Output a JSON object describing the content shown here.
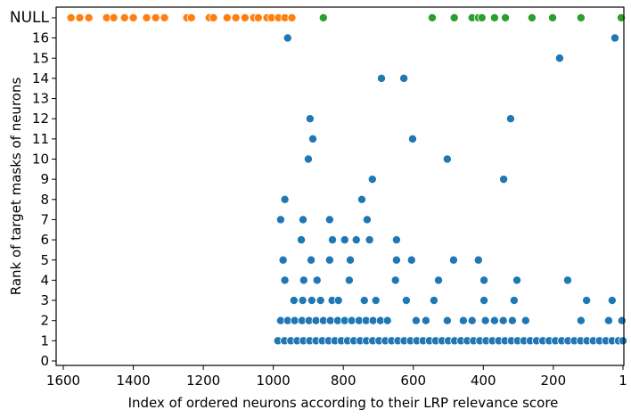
{
  "chart_data": {
    "type": "scatter",
    "xlabel": "Index of ordered neurons according to their LRP relevance score",
    "ylabel": "Rank of target masks of neurons",
    "xlim": [
      1600,
      1
    ],
    "x_reversed": true,
    "ylim": [
      0,
      17
    ],
    "x_ticks": [
      1600,
      1400,
      1200,
      1000,
      800,
      600,
      400,
      200,
      1
    ],
    "y_ticks": [
      "0",
      "1",
      "2",
      "3",
      "4",
      "5",
      "6",
      "7",
      "8",
      "9",
      "10",
      "11",
      "12",
      "13",
      "14",
      "15",
      "16",
      "NULL"
    ],
    "grid": false,
    "colors": {
      "ranked": "#1f77b4",
      "null_low": "#ff7f0e",
      "null_high": "#2ca02c"
    },
    "series": [
      {
        "color": "#1f77b4",
        "points": [
          [
            959,
            16
          ],
          [
            24,
            16
          ],
          [
            182,
            15
          ],
          [
            691,
            14
          ],
          [
            627,
            14
          ],
          [
            895,
            12
          ],
          [
            322,
            12
          ],
          [
            887,
            11
          ],
          [
            602,
            11
          ],
          [
            900,
            10
          ],
          [
            503,
            10
          ],
          [
            717,
            9
          ],
          [
            342,
            9
          ],
          [
            967,
            8
          ],
          [
            747,
            8
          ],
          [
            979,
            7
          ],
          [
            915,
            7
          ],
          [
            839,
            7
          ],
          [
            732,
            7
          ],
          [
            920,
            6
          ],
          [
            831,
            6
          ],
          [
            796,
            6
          ],
          [
            763,
            6
          ],
          [
            725,
            6
          ],
          [
            648,
            6
          ],
          [
            972,
            5
          ],
          [
            892,
            5
          ],
          [
            839,
            5
          ],
          [
            780,
            5
          ],
          [
            648,
            5
          ],
          [
            605,
            5
          ],
          [
            485,
            5
          ],
          [
            414,
            5
          ],
          [
            967,
            4
          ],
          [
            913,
            4
          ],
          [
            875,
            4
          ],
          [
            783,
            4
          ],
          [
            651,
            4
          ],
          [
            528,
            4
          ],
          [
            398,
            4
          ],
          [
            304,
            4
          ],
          [
            159,
            4
          ],
          [
            941,
            3
          ],
          [
            916,
            3
          ],
          [
            890,
            3
          ],
          [
            865,
            3
          ],
          [
            832,
            3
          ],
          [
            814,
            3
          ],
          [
            740,
            3
          ],
          [
            707,
            3
          ],
          [
            620,
            3
          ],
          [
            541,
            3
          ],
          [
            398,
            3
          ],
          [
            312,
            3
          ],
          [
            105,
            3
          ],
          [
            32,
            3
          ],
          [
            979,
            2
          ],
          [
            959,
            2
          ],
          [
            939,
            2
          ],
          [
            918,
            2
          ],
          [
            898,
            2
          ],
          [
            878,
            2
          ],
          [
            857,
            2
          ],
          [
            837,
            2
          ],
          [
            816,
            2
          ],
          [
            796,
            2
          ],
          [
            776,
            2
          ],
          [
            755,
            2
          ],
          [
            735,
            2
          ],
          [
            715,
            2
          ],
          [
            694,
            2
          ],
          [
            674,
            2
          ],
          [
            592,
            2
          ],
          [
            564,
            2
          ],
          [
            503,
            2
          ],
          [
            457,
            2
          ],
          [
            432,
            2
          ],
          [
            394,
            2
          ],
          [
            368,
            2
          ],
          [
            343,
            2
          ],
          [
            317,
            2
          ],
          [
            279,
            2
          ],
          [
            121,
            2
          ],
          [
            42,
            2
          ],
          [
            4,
            2
          ],
          [
            987,
            1
          ],
          [
            968,
            1
          ],
          [
            950,
            1
          ],
          [
            932,
            1
          ],
          [
            914,
            1
          ],
          [
            896,
            1
          ],
          [
            878,
            1
          ],
          [
            860,
            1
          ],
          [
            842,
            1
          ],
          [
            824,
            1
          ],
          [
            806,
            1
          ],
          [
            788,
            1
          ],
          [
            770,
            1
          ],
          [
            752,
            1
          ],
          [
            734,
            1
          ],
          [
            716,
            1
          ],
          [
            698,
            1
          ],
          [
            680,
            1
          ],
          [
            662,
            1
          ],
          [
            644,
            1
          ],
          [
            626,
            1
          ],
          [
            608,
            1
          ],
          [
            590,
            1
          ],
          [
            572,
            1
          ],
          [
            554,
            1
          ],
          [
            536,
            1
          ],
          [
            518,
            1
          ],
          [
            500,
            1
          ],
          [
            482,
            1
          ],
          [
            464,
            1
          ],
          [
            446,
            1
          ],
          [
            428,
            1
          ],
          [
            410,
            1
          ],
          [
            392,
            1
          ],
          [
            374,
            1
          ],
          [
            356,
            1
          ],
          [
            338,
            1
          ],
          [
            320,
            1
          ],
          [
            302,
            1
          ],
          [
            284,
            1
          ],
          [
            266,
            1
          ],
          [
            248,
            1
          ],
          [
            230,
            1
          ],
          [
            212,
            1
          ],
          [
            194,
            1
          ],
          [
            176,
            1
          ],
          [
            158,
            1
          ],
          [
            140,
            1
          ],
          [
            122,
            1
          ],
          [
            104,
            1
          ],
          [
            86,
            1
          ],
          [
            68,
            1
          ],
          [
            50,
            1
          ],
          [
            32,
            1
          ],
          [
            14,
            1
          ],
          [
            1,
            1
          ]
        ]
      },
      {
        "color": "#ff7f0e",
        "points": [
          [
            1578,
            "NULL"
          ],
          [
            1553,
            "NULL"
          ],
          [
            1527,
            "NULL"
          ],
          [
            1476,
            "NULL"
          ],
          [
            1456,
            "NULL"
          ],
          [
            1425,
            "NULL"
          ],
          [
            1400,
            "NULL"
          ],
          [
            1362,
            "NULL"
          ],
          [
            1336,
            "NULL"
          ],
          [
            1311,
            "NULL"
          ],
          [
            1247,
            "NULL"
          ],
          [
            1234,
            "NULL"
          ],
          [
            1183,
            "NULL"
          ],
          [
            1171,
            "NULL"
          ],
          [
            1132,
            "NULL"
          ],
          [
            1107,
            "NULL"
          ],
          [
            1081,
            "NULL"
          ],
          [
            1056,
            "NULL"
          ],
          [
            1043,
            "NULL"
          ],
          [
            1018,
            "NULL"
          ],
          [
            1005,
            "NULL"
          ],
          [
            985,
            "NULL"
          ],
          [
            967,
            "NULL"
          ],
          [
            947,
            "NULL"
          ]
        ]
      },
      {
        "color": "#2ca02c",
        "points": [
          [
            857,
            "NULL"
          ],
          [
            546,
            "NULL"
          ],
          [
            483,
            "NULL"
          ],
          [
            432,
            "NULL"
          ],
          [
            414,
            "NULL"
          ],
          [
            404,
            "NULL"
          ],
          [
            368,
            "NULL"
          ],
          [
            337,
            "NULL"
          ],
          [
            261,
            "NULL"
          ],
          [
            202,
            "NULL"
          ],
          [
            121,
            "NULL"
          ],
          [
            6,
            "NULL"
          ]
        ]
      }
    ]
  }
}
